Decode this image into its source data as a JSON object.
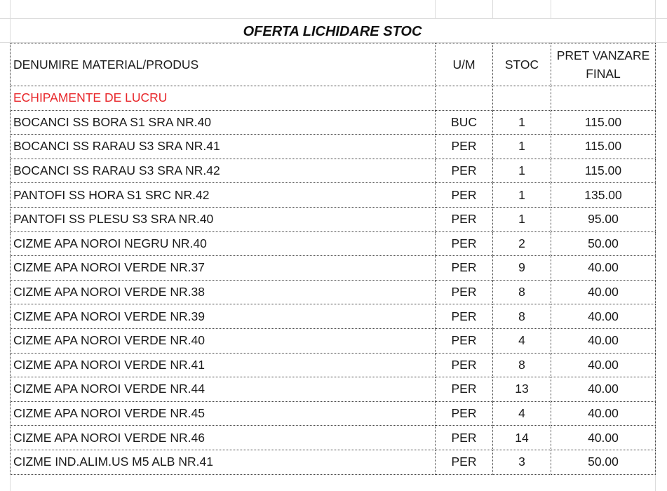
{
  "title": "OFERTA LICHIDARE STOC",
  "headers": [
    "DENUMIRE MATERIAL/PRODUS",
    "U/M",
    "STOC",
    "PRET VANZARE FINAL"
  ],
  "header_price_lines": [
    "PRET VANZARE",
    "FINAL"
  ],
  "category": "ECHIPAMENTE DE LUCRU",
  "category_color": "#e8262a",
  "rows": [
    {
      "name": "BOCANCI SS BORA S1 SRA NR.40",
      "um": "BUC",
      "stoc": "1",
      "pret": "115.00"
    },
    {
      "name": "BOCANCI SS RARAU S3 SRA NR.41",
      "um": "PER",
      "stoc": "1",
      "pret": "115.00"
    },
    {
      "name": "BOCANCI SS RARAU S3 SRA NR.42",
      "um": "PER",
      "stoc": "1",
      "pret": "115.00"
    },
    {
      "name": "PANTOFI SS HORA S1 SRC NR.42",
      "um": "PER",
      "stoc": "1",
      "pret": "135.00"
    },
    {
      "name": "PANTOFI SS PLESU S3 SRA NR.40",
      "um": "PER",
      "stoc": "1",
      "pret": "95.00"
    },
    {
      "name": "CIZME APA NOROI NEGRU NR.40",
      "um": "PER",
      "stoc": "2",
      "pret": "50.00"
    },
    {
      "name": "CIZME APA NOROI VERDE NR.37",
      "um": "PER",
      "stoc": "9",
      "pret": "40.00"
    },
    {
      "name": "CIZME APA NOROI VERDE NR.38",
      "um": "PER",
      "stoc": "8",
      "pret": "40.00"
    },
    {
      "name": "CIZME APA NOROI VERDE NR.39",
      "um": "PER",
      "stoc": "8",
      "pret": "40.00"
    },
    {
      "name": "CIZME APA NOROI VERDE NR.40",
      "um": "PER",
      "stoc": "4",
      "pret": "40.00"
    },
    {
      "name": "CIZME APA NOROI VERDE NR.41",
      "um": "PER",
      "stoc": "8",
      "pret": "40.00"
    },
    {
      "name": "CIZME APA NOROI VERDE NR.44",
      "um": "PER",
      "stoc": "13",
      "pret": "40.00"
    },
    {
      "name": "CIZME APA NOROI VERDE NR.45",
      "um": "PER",
      "stoc": "4",
      "pret": "40.00"
    },
    {
      "name": "CIZME APA NOROI VERDE NR.46",
      "um": "PER",
      "stoc": "14",
      "pret": "40.00"
    },
    {
      "name": "CIZME IND.ALIM.US M5 ALB NR.41",
      "um": "PER",
      "stoc": "3",
      "pret": "50.00"
    }
  ]
}
